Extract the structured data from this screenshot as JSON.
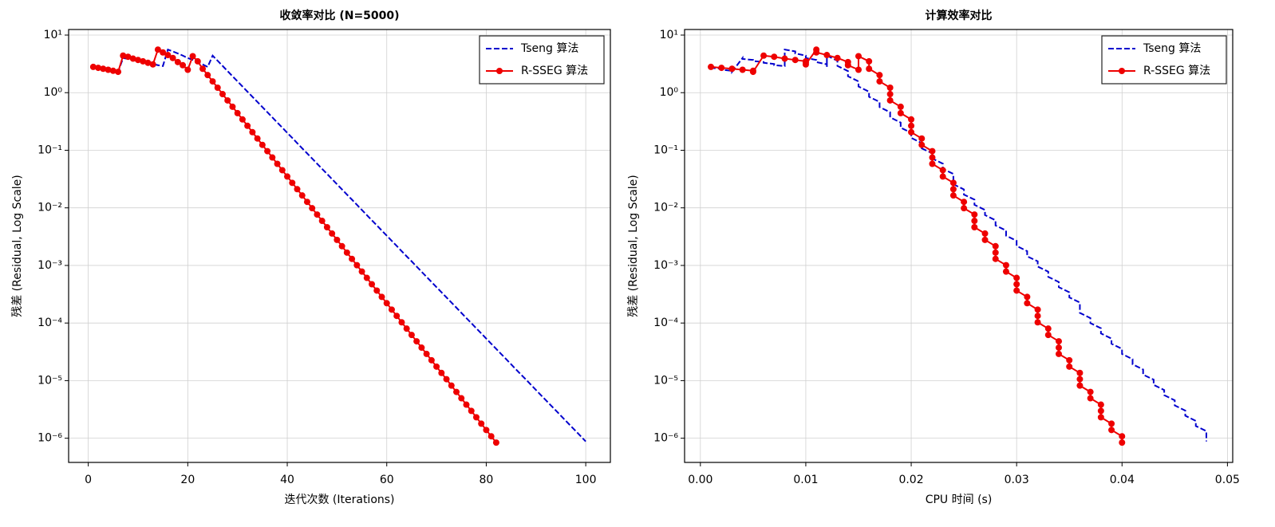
{
  "chart_data": [
    {
      "type": "line",
      "title": "收敛率对比 (N=5000)",
      "xlabel": "迭代次数 (Iterations)",
      "ylabel": "残差 (Residual, Log Scale)",
      "yscale": "log",
      "grid": true,
      "legend": "upper right",
      "xlim": [
        -3.95,
        104.95
      ],
      "ylim": [
        3.8e-07,
        12.5
      ],
      "xticks": [
        0,
        20,
        40,
        60,
        80,
        100
      ],
      "yticks": [
        {
          "value": 10,
          "label": "10¹"
        },
        {
          "value": 1,
          "label": "10⁰"
        },
        {
          "value": 0.1,
          "label": "10⁻¹"
        },
        {
          "value": 0.01,
          "label": "10⁻²"
        },
        {
          "value": 0.001,
          "label": "10⁻³"
        },
        {
          "value": 0.0001,
          "label": "10⁻⁴"
        },
        {
          "value": 1e-05,
          "label": "10⁻⁵"
        },
        {
          "value": 1e-06,
          "label": "10⁻⁶"
        }
      ],
      "series": [
        {
          "name": "Tseng 算法",
          "color": "#0000cd",
          "linestyle": "dashed",
          "marker": null,
          "x": [
            1,
            2,
            3,
            4,
            5,
            6,
            7,
            8,
            9,
            10,
            11,
            12,
            13,
            14,
            15,
            16,
            17,
            18,
            19,
            20,
            21,
            22,
            23,
            24,
            25,
            26,
            27,
            28,
            29,
            30,
            31,
            32,
            33,
            34,
            35,
            36,
            37,
            38,
            39,
            40,
            41,
            42,
            43,
            44,
            45,
            46,
            47,
            48,
            49,
            50,
            51,
            52,
            53,
            54,
            55,
            56,
            57,
            58,
            59,
            60,
            61,
            62,
            63,
            64,
            65,
            66,
            67,
            68,
            69,
            70,
            71,
            72,
            73,
            74,
            75,
            76,
            77,
            78,
            79,
            80,
            81,
            82,
            83,
            84,
            85,
            86,
            87,
            88,
            89,
            90,
            91,
            92,
            93,
            94,
            95,
            96,
            97,
            98,
            99,
            100
          ],
          "values": [
            2.8,
            2.7,
            2.6,
            2.5,
            2.4,
            2.3,
            4.0,
            3.85,
            3.7,
            3.55,
            3.4,
            3.3,
            3.15,
            3.0,
            2.9,
            5.6,
            5.2,
            4.8,
            4.4,
            4.0,
            3.7,
            3.4,
            3.1,
            2.8,
            4.4,
            3.58,
            2.92,
            2.37,
            1.93,
            1.57,
            1.28,
            1.04,
            0.848,
            0.691,
            0.562,
            0.458,
            0.373,
            0.303,
            0.247,
            0.201,
            0.164,
            0.133,
            0.108,
            0.0883,
            0.0719,
            0.0585,
            0.0476,
            0.0388,
            0.0316,
            0.0257,
            0.0209,
            0.017,
            0.0139,
            0.0113,
            0.00919,
            0.00748,
            0.00609,
            0.00496,
            0.00404,
            0.00329,
            0.00268,
            0.00218,
            0.00177,
            0.00144,
            0.00118,
            0.000957,
            0.000779,
            0.000634,
            0.000516,
            0.00042,
            0.000342,
            0.000279,
            0.000227,
            0.000185,
            0.00015,
            0.000122,
            9.96e-05,
            8.11e-05,
            6.6e-05,
            5.37e-05,
            4.37e-05,
            3.56e-05,
            2.9e-05,
            2.36e-05,
            1.92e-05,
            1.56e-05,
            1.27e-05,
            1.04e-05,
            8.44e-06,
            6.87e-06,
            5.59e-06,
            4.55e-06,
            3.71e-06,
            3.02e-06,
            2.46e-06,
            2e-06,
            1.63e-06,
            1.33e-06,
            1.08e-06,
            8.8e-07
          ]
        },
        {
          "name": "R-SSEG 算法",
          "color": "#ee0000",
          "linestyle": "solid",
          "marker": "o",
          "x": [
            1,
            2,
            3,
            4,
            5,
            6,
            7,
            8,
            9,
            10,
            11,
            12,
            13,
            14,
            15,
            16,
            17,
            18,
            19,
            20,
            21,
            22,
            23,
            24,
            25,
            26,
            27,
            28,
            29,
            30,
            31,
            32,
            33,
            34,
            35,
            36,
            37,
            38,
            39,
            40,
            41,
            42,
            43,
            44,
            45,
            46,
            47,
            48,
            49,
            50,
            51,
            52,
            53,
            54,
            55,
            56,
            57,
            58,
            59,
            60,
            61,
            62,
            63,
            64,
            65,
            66,
            67,
            68,
            69,
            70,
            71,
            72,
            73,
            74,
            75,
            76,
            77,
            78,
            79,
            80,
            81,
            82
          ],
          "values": [
            2.8,
            2.7,
            2.6,
            2.5,
            2.4,
            2.3,
            4.4,
            4.2,
            3.9,
            3.7,
            3.5,
            3.3,
            3.1,
            5.6,
            5.0,
            4.5,
            4.0,
            3.4,
            3.0,
            2.5,
            4.3,
            3.5,
            2.6,
            2.02,
            1.57,
            1.22,
            0.944,
            0.733,
            0.569,
            0.441,
            0.343,
            0.266,
            0.206,
            0.16,
            0.124,
            0.0965,
            0.0749,
            0.0581,
            0.0451,
            0.035,
            0.0272,
            0.0211,
            0.0164,
            0.0127,
            0.00986,
            0.00766,
            0.00594,
            0.00461,
            0.00358,
            0.00278,
            0.00216,
            0.00167,
            0.0013,
            0.00101,
            0.000783,
            0.000608,
            0.000472,
            0.000366,
            0.000284,
            0.000221,
            0.000171,
            0.000133,
            0.000103,
            8e-05,
            6.21e-05,
            4.82e-05,
            3.74e-05,
            2.91e-05,
            2.26e-05,
            1.75e-05,
            1.36e-05,
            1.06e-05,
            8.2e-06,
            6.36e-06,
            4.94e-06,
            3.83e-06,
            2.98e-06,
            2.31e-06,
            1.79e-06,
            1.39e-06,
            1.08e-06,
            8.4e-07
          ]
        }
      ]
    },
    {
      "type": "line",
      "title": "计算效率对比",
      "xlabel": "CPU 时间 (s)",
      "ylabel": "残差 (Residual, Log Scale)",
      "yscale": "log",
      "grid": true,
      "legend": "upper right",
      "xlim": [
        -0.0015,
        0.0505
      ],
      "ylim": [
        3.8e-07,
        12.5
      ],
      "xticks": [
        {
          "value": 0,
          "label": "0.00"
        },
        0.01,
        0.02,
        0.03,
        0.04,
        0.05
      ],
      "yticks": [
        {
          "value": 10,
          "label": "10¹"
        },
        {
          "value": 1,
          "label": "10⁰"
        },
        {
          "value": 0.1,
          "label": "10⁻¹"
        },
        {
          "value": 0.01,
          "label": "10⁻²"
        },
        {
          "value": 0.001,
          "label": "10⁻³"
        },
        {
          "value": 0.0001,
          "label": "10⁻⁴"
        },
        {
          "value": 1e-05,
          "label": "10⁻⁵"
        },
        {
          "value": 1e-06,
          "label": "10⁻⁶"
        }
      ],
      "series": [
        {
          "name": "Tseng 算法",
          "color": "#0000cd",
          "linestyle": "dashed",
          "marker": null,
          "x": [
            0.001,
            0.001,
            0.002,
            0.002,
            0.003,
            0.003,
            0.004,
            0.004,
            0.005,
            0.005,
            0.006,
            0.006,
            0.007,
            0.007,
            0.008,
            0.008,
            0.009,
            0.009,
            0.01,
            0.01,
            0.011,
            0.011,
            0.012,
            0.012,
            0.012,
            0.013,
            0.013,
            0.014,
            0.014,
            0.015,
            0.015,
            0.016,
            0.016,
            0.017,
            0.017,
            0.018,
            0.018,
            0.019,
            0.019,
            0.02,
            0.02,
            0.021,
            0.021,
            0.022,
            0.022,
            0.023,
            0.023,
            0.024,
            0.024,
            0.024,
            0.025,
            0.025,
            0.026,
            0.026,
            0.027,
            0.027,
            0.028,
            0.028,
            0.029,
            0.029,
            0.03,
            0.03,
            0.031,
            0.031,
            0.032,
            0.032,
            0.033,
            0.033,
            0.034,
            0.034,
            0.035,
            0.035,
            0.036,
            0.036,
            0.036,
            0.037,
            0.037,
            0.038,
            0.038,
            0.039,
            0.039,
            0.04,
            0.04,
            0.041,
            0.041,
            0.042,
            0.042,
            0.043,
            0.043,
            0.044,
            0.044,
            0.045,
            0.045,
            0.046,
            0.046,
            0.047,
            0.047,
            0.048,
            0.048,
            0.048
          ],
          "values": [
            2.8,
            2.7,
            2.6,
            2.5,
            2.4,
            2.3,
            4.0,
            3.85,
            3.7,
            3.55,
            3.4,
            3.3,
            3.15,
            3.0,
            2.9,
            5.6,
            5.2,
            4.8,
            4.4,
            4.0,
            3.7,
            3.4,
            3.1,
            2.8,
            4.4,
            3.58,
            2.92,
            2.37,
            1.93,
            1.57,
            1.28,
            1.04,
            0.848,
            0.691,
            0.562,
            0.458,
            0.373,
            0.303,
            0.247,
            0.201,
            0.164,
            0.133,
            0.108,
            0.0883,
            0.0719,
            0.0585,
            0.0476,
            0.0388,
            0.0316,
            0.0257,
            0.0209,
            0.017,
            0.0139,
            0.0113,
            0.00919,
            0.00748,
            0.00609,
            0.00496,
            0.00404,
            0.00329,
            0.00268,
            0.00218,
            0.00177,
            0.00144,
            0.00118,
            0.000957,
            0.000779,
            0.000634,
            0.000516,
            0.00042,
            0.000342,
            0.000279,
            0.000227,
            0.000185,
            0.00015,
            0.000122,
            9.96e-05,
            8.11e-05,
            6.6e-05,
            5.37e-05,
            4.37e-05,
            3.56e-05,
            2.9e-05,
            2.36e-05,
            1.92e-05,
            1.56e-05,
            1.27e-05,
            1.04e-05,
            8.44e-06,
            6.87e-06,
            5.59e-06,
            4.55e-06,
            3.71e-06,
            3.02e-06,
            2.46e-06,
            2e-06,
            1.63e-06,
            1.33e-06,
            1.08e-06,
            8.8e-07
          ]
        },
        {
          "name": "R-SSEG 算法",
          "color": "#ee0000",
          "linestyle": "solid",
          "marker": "o",
          "x": [
            0.001,
            0.002,
            0.003,
            0.004,
            0.005,
            0.005,
            0.006,
            0.007,
            0.008,
            0.009,
            0.01,
            0.01,
            0.01,
            0.011,
            0.011,
            0.012,
            0.013,
            0.014,
            0.014,
            0.015,
            0.015,
            0.016,
            0.016,
            0.017,
            0.017,
            0.018,
            0.018,
            0.018,
            0.019,
            0.019,
            0.02,
            0.02,
            0.02,
            0.021,
            0.021,
            0.022,
            0.022,
            0.022,
            0.023,
            0.023,
            0.024,
            0.024,
            0.024,
            0.025,
            0.025,
            0.026,
            0.026,
            0.026,
            0.027,
            0.027,
            0.028,
            0.028,
            0.028,
            0.029,
            0.029,
            0.03,
            0.03,
            0.03,
            0.031,
            0.031,
            0.032,
            0.032,
            0.032,
            0.033,
            0.033,
            0.034,
            0.034,
            0.034,
            0.035,
            0.035,
            0.036,
            0.036,
            0.036,
            0.037,
            0.037,
            0.038,
            0.038,
            0.038,
            0.039,
            0.039,
            0.04,
            0.04
          ],
          "values": [
            2.8,
            2.7,
            2.6,
            2.5,
            2.4,
            2.3,
            4.4,
            4.2,
            3.9,
            3.7,
            3.5,
            3.3,
            3.1,
            5.6,
            5.0,
            4.5,
            4.0,
            3.4,
            3.0,
            2.5,
            4.3,
            3.5,
            2.6,
            2.02,
            1.57,
            1.22,
            0.944,
            0.733,
            0.569,
            0.441,
            0.343,
            0.266,
            0.206,
            0.16,
            0.124,
            0.0965,
            0.0749,
            0.0581,
            0.0451,
            0.035,
            0.0272,
            0.0211,
            0.0164,
            0.0127,
            0.00986,
            0.00766,
            0.00594,
            0.00461,
            0.00358,
            0.00278,
            0.00216,
            0.00167,
            0.0013,
            0.00101,
            0.000783,
            0.000608,
            0.000472,
            0.000366,
            0.000284,
            0.000221,
            0.000171,
            0.000133,
            0.000103,
            8e-05,
            6.21e-05,
            4.82e-05,
            3.74e-05,
            2.91e-05,
            2.26e-05,
            1.75e-05,
            1.36e-05,
            1.06e-05,
            8.2e-06,
            6.36e-06,
            4.94e-06,
            3.83e-06,
            2.98e-06,
            2.31e-06,
            1.79e-06,
            1.39e-06,
            1.08e-06,
            8.4e-07
          ]
        }
      ]
    }
  ]
}
